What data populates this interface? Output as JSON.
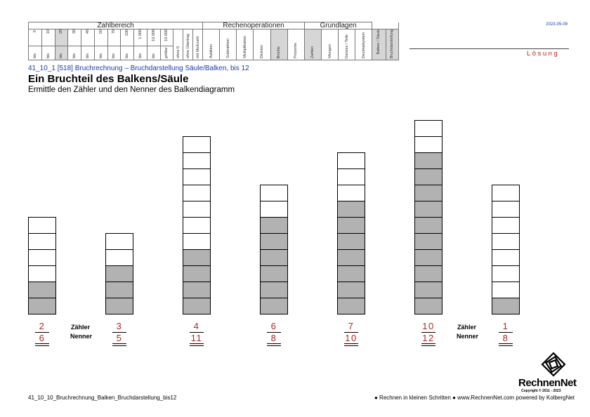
{
  "header": {
    "groups": [
      "Zahlbereich",
      "Rechenoperationen",
      "Grundlagen"
    ],
    "zahlbereich": [
      {
        "top": "9",
        "bot": "bis",
        "hl": false
      },
      {
        "top": "10",
        "bot": "bis",
        "hl": false
      },
      {
        "top": "20",
        "bot": "bis",
        "hl": true
      },
      {
        "top": "30",
        "bot": "bis",
        "hl": false
      },
      {
        "top": "40",
        "bot": "bis",
        "hl": false
      },
      {
        "top": "50",
        "bot": "bis",
        "hl": false
      },
      {
        "top": "70",
        "bot": "bis",
        "hl": false
      },
      {
        "top": "100",
        "bot": "bis",
        "hl": false
      },
      {
        "top": "1.000",
        "bot": "bis",
        "hl": false
      },
      {
        "top": "10.000",
        "bot": "bis",
        "hl": false
      },
      {
        "top": "10.000",
        "bot": "größer",
        "hl": false
      }
    ],
    "zahlbereich_extra": [
      "ohne 0",
      "ohne Übertrag",
      "mit Merkzahl"
    ],
    "rechenoperationen": [
      {
        "label": "Addition",
        "hl": false
      },
      {
        "label": "Subtraktion",
        "hl": false
      },
      {
        "label": "Multiplikation",
        "hl": false
      },
      {
        "label": "Division",
        "hl": false
      },
      {
        "label": "Brüche",
        "hl": true
      },
      {
        "label": "Prozente",
        "hl": false
      }
    ],
    "grundlagen": [
      {
        "label": "Zahlen",
        "hl": true
      },
      {
        "label": "Mengen",
        "hl": false
      },
      {
        "label": "Ganzes / Teile",
        "hl": false
      },
      {
        "label": "Dezimalsystem",
        "hl": false
      }
    ],
    "extra": [
      {
        "label": "Balken / Säule",
        "hl": true
      },
      {
        "label": "Bruchdarstellung",
        "hl": true
      }
    ]
  },
  "date": "2023-05-09",
  "solution_label": "Lösung",
  "reference": "41_10_1   [518]   Bruchrechnung  –  Bruchdarstellung Säule/Balken, bis 12",
  "title": "Ein Bruchteil des Balkens/Säule",
  "subtitle": "Ermittle den Zähler und den Nenner des Balkendiagramm",
  "bars": [
    {
      "numerator": "2",
      "denominator": "6",
      "total": 6,
      "shaded": 2
    },
    {
      "numerator": "3",
      "denominator": "5",
      "total": 5,
      "shaded": 3
    },
    {
      "numerator": "4",
      "denominator": "11",
      "total": 11,
      "shaded": 4
    },
    {
      "numerator": "6",
      "denominator": "8",
      "total": 8,
      "shaded": 6
    },
    {
      "numerator": "7",
      "denominator": "10",
      "total": 10,
      "shaded": 7
    },
    {
      "numerator": "10",
      "denominator": "12",
      "total": 12,
      "shaded": 10
    },
    {
      "numerator": "1",
      "denominator": "8",
      "total": 8,
      "shaded": 1
    }
  ],
  "legend": {
    "zaehler": "Zähler",
    "nenner": "Nenner"
  },
  "footer": {
    "filename": "41_10_10_Bruchrechnung_Balken_Bruchdarstellung_bis12",
    "slogan": "● Rechnen in kleinen Schritten ●     www.RechnenNet.com powered by KolbergNet",
    "brand": "RechnenNet",
    "copyright": "Copyright © 2011 - 2023"
  },
  "colors": {
    "accent_red": "#b22222",
    "link_blue": "#1a3aa8",
    "shade": "#b2b2b2"
  }
}
